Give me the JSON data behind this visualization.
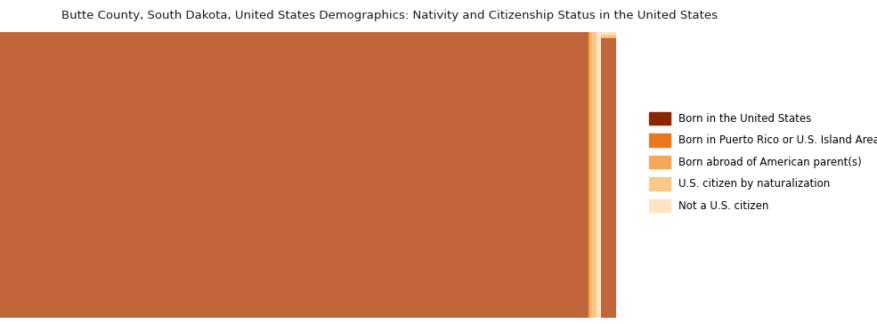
{
  "title": "Butte County, South Dakota, United States Demographics: Nativity and Citizenship Status in the United States",
  "categories": [
    "Born in the United States",
    "Born in Puerto Rico or U.S. Island Areas",
    "Born abroad of American parent(s)",
    "U.S. citizen by naturalization",
    "Not a U.S. citizen"
  ],
  "values": [
    9480,
    0,
    30,
    95,
    65
  ],
  "colors": [
    "#c0663a",
    "#e87722",
    "#f5a855",
    "#f9c98a",
    "#fde4c2"
  ],
  "legend_colors": [
    "#8B2500",
    "#e87722",
    "#f5a855",
    "#f9c98a",
    "#fde4c2"
  ],
  "background_color": "#ffffff",
  "title_fontsize": 9.5,
  "fig_width": 9.85,
  "fig_height": 3.64
}
